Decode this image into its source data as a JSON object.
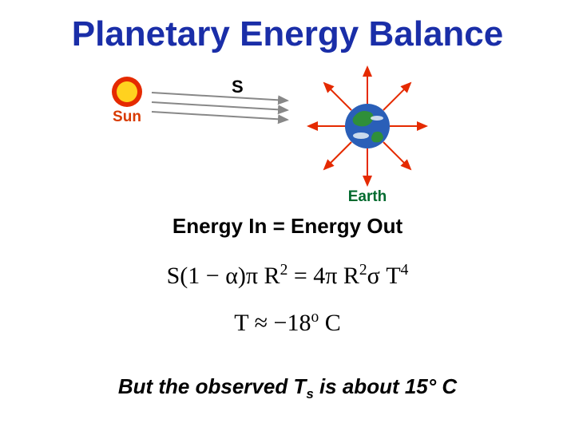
{
  "title": {
    "text": "Planetary Energy Balance",
    "color": "#1a2ea8",
    "fontsize": 44
  },
  "diagram": {
    "sun": {
      "label": "Sun",
      "label_color": "#d83a00",
      "label_fontsize": 19,
      "outer_color": "#e52a00",
      "inner_color": "#ffd21f"
    },
    "s_label": {
      "text": "S",
      "color": "#000000",
      "fontsize": 22
    },
    "earth": {
      "label": "Earth",
      "label_color": "#006a2e",
      "label_fontsize": 19,
      "ocean_color": "#2a5fb8",
      "land_color": "#2f8f3a",
      "cloud_color": "#e8f0f5",
      "arrow_color": "#e52a00",
      "ray_color": "#888888"
    }
  },
  "subhead": {
    "text": "Energy In = Energy Out",
    "color": "#000000",
    "fontsize": 26
  },
  "equations": {
    "line1_html": "S(1 − α)π R<span class='sup'>2</span> = 4π R<span class='sup'>2</span>σ T<span class='sup'>4</span>",
    "line2_html": "T ≈ −18<span class='sup'>o</span> C",
    "color": "#000000",
    "fontsize": 30,
    "line2_fontsize": 30
  },
  "footer": {
    "prefix": "But the observed T",
    "sub": "s",
    "suffix": " is about 15° C",
    "color": "#000000",
    "fontsize": 26
  }
}
